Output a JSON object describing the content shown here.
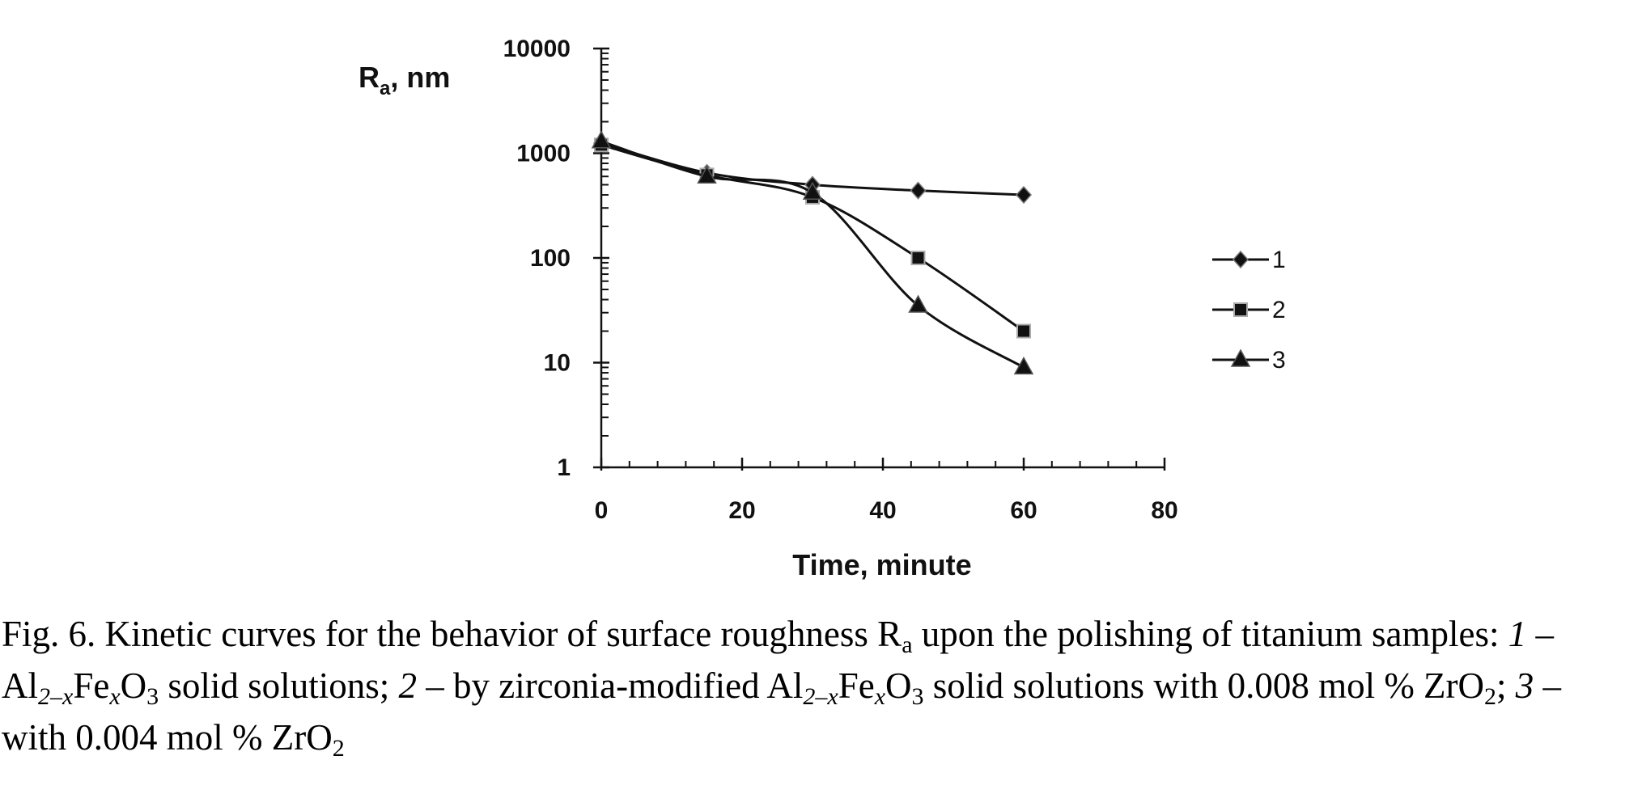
{
  "chart_data": {
    "type": "line",
    "yscale": "log",
    "xlim": [
      0,
      80
    ],
    "ylim": [
      1,
      10000
    ],
    "x_ticks": [
      0,
      20,
      40,
      60,
      80
    ],
    "x_tick_labels": [
      "0",
      "20",
      "40",
      "60",
      "80"
    ],
    "y_ticks": [
      1,
      10,
      100,
      1000,
      10000
    ],
    "y_tick_labels": [
      "1",
      "10",
      "100",
      "1000",
      "10000"
    ],
    "xlabel": "Time, minute",
    "ylabel": {
      "main": "R",
      "sub": "a",
      "rest": ", nm"
    },
    "grid": false,
    "legend_position": "right",
    "series": [
      {
        "name": "1",
        "marker": "diamond",
        "x": [
          0,
          15,
          30,
          45,
          60
        ],
        "y": [
          1250,
          650,
          500,
          440,
          400
        ]
      },
      {
        "name": "2",
        "marker": "square",
        "x": [
          0,
          15,
          30,
          45,
          60
        ],
        "y": [
          1200,
          620,
          380,
          100,
          20
        ]
      },
      {
        "name": "3",
        "marker": "triangle",
        "x": [
          0,
          15,
          30,
          45,
          60
        ],
        "y": [
          1300,
          600,
          420,
          35,
          9
        ]
      }
    ]
  },
  "caption": {
    "p1": "Fig. 6. Kinetic curves for the behavior of surface roughness R",
    "p1_sub": "a",
    "p2": " upon the polishing of titanium samples: ",
    "n1": "1",
    "p3": " – Al",
    "s1": "2–x",
    "p4": "Fe",
    "s2": "x",
    "p5": "O",
    "s3": "3",
    "p6": " solid solutions; ",
    "n2": "2",
    "p7": " – by zirconia-modified Al",
    "s4": "2–x",
    "p8": "Fe",
    "s5": "x",
    "p9": "O",
    "s6": "3",
    "p10": " solid solutions with 0.008 mol % ZrO",
    "s7": "2",
    "p11": "; ",
    "n3": "3",
    "p12": " – with 0.004 mol % ZrO",
    "s8": "2"
  }
}
